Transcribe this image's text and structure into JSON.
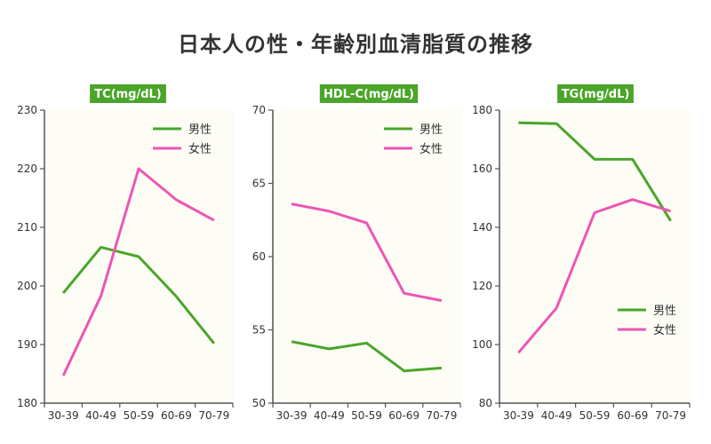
{
  "title": "日本人の性・年齢別血清脂質の推移",
  "colors": {
    "male": "#4aa52a",
    "female": "#ee55b5",
    "badge": "#4aa52a",
    "plot_bg": "#fdfdf5",
    "axis": "#555555"
  },
  "legend": {
    "male": "男性",
    "female": "女性"
  },
  "chart_data": [
    {
      "type": "line",
      "title": "TC(mg/dL)",
      "categories": [
        "30-39",
        "40-49",
        "50-59",
        "60-69",
        "70-79"
      ],
      "yticks": [
        180,
        190,
        200,
        210,
        220,
        230
      ],
      "ylim": [
        180,
        230
      ],
      "series": [
        {
          "name": "男性",
          "values": [
            198.8,
            206.6,
            205.0,
            198.2,
            190.2
          ]
        },
        {
          "name": "女性",
          "values": [
            184.7,
            198.3,
            220.0,
            214.7,
            211.2
          ]
        }
      ],
      "legend_position": "top-right",
      "grid": false
    },
    {
      "type": "line",
      "title": "HDL-C(mg/dL)",
      "categories": [
        "30-39",
        "40-49",
        "50-59",
        "60-69",
        "70-79"
      ],
      "yticks": [
        50,
        55,
        60,
        65,
        70
      ],
      "ylim": [
        50,
        70
      ],
      "series": [
        {
          "name": "男性",
          "values": [
            54.2,
            53.7,
            54.1,
            52.2,
            52.4
          ]
        },
        {
          "name": "女性",
          "values": [
            63.6,
            63.1,
            62.3,
            57.5,
            57.0
          ]
        }
      ],
      "legend_position": "top-right",
      "grid": false
    },
    {
      "type": "line",
      "title": "TG(mg/dL)",
      "categories": [
        "30-39",
        "40-49",
        "50-59",
        "60-69",
        "70-79"
      ],
      "yticks": [
        80,
        100,
        120,
        140,
        160,
        180
      ],
      "ylim": [
        80,
        180
      ],
      "series": [
        {
          "name": "男性",
          "values": [
            175.7,
            175.4,
            163.2,
            163.2,
            142.2
          ]
        },
        {
          "name": "女性",
          "values": [
            97.2,
            112.5,
            145.0,
            149.5,
            145.5
          ]
        }
      ],
      "legend_position": "bottom-right",
      "grid": false
    }
  ]
}
